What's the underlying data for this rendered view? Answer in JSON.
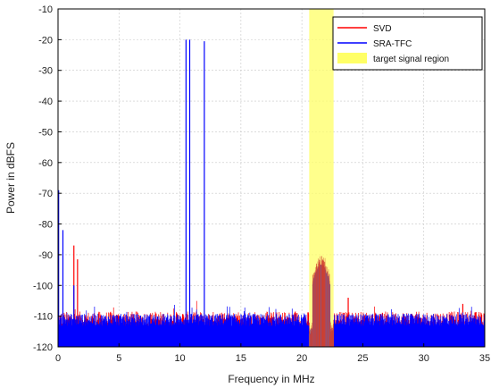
{
  "chart_data": {
    "type": "line",
    "title": "",
    "xlabel": "Frequency in MHz",
    "ylabel": "Power in dBFS",
    "xlim": [
      0,
      35
    ],
    "ylim": [
      -120,
      -10
    ],
    "xticks": [
      0,
      5,
      10,
      15,
      20,
      25,
      30,
      35
    ],
    "yticks": [
      -10,
      -20,
      -30,
      -40,
      -50,
      -60,
      -70,
      -80,
      -90,
      -100,
      -110,
      -120
    ],
    "grid": true,
    "legend_position": "top-right",
    "noise_floor_approx": -112,
    "series": [
      {
        "name": "SVD",
        "color": "#ff0000",
        "peaks": [
          {
            "x": 1.3,
            "y": -87
          },
          {
            "x": 1.6,
            "y": -91.5
          },
          {
            "x": 23.8,
            "y": -104
          },
          {
            "x": 33.2,
            "y": -106
          }
        ]
      },
      {
        "name": "SRA-TFC",
        "color": "#0000ff",
        "peaks": [
          {
            "x": 0.05,
            "y": -69
          },
          {
            "x": 0.4,
            "y": -82
          },
          {
            "x": 1.3,
            "y": -100
          },
          {
            "x": 10.5,
            "y": -20
          },
          {
            "x": 10.8,
            "y": -20
          },
          {
            "x": 12.0,
            "y": -20.5
          }
        ]
      }
    ],
    "target_band": {
      "label": "target signal region",
      "x_start": 20.6,
      "x_end": 22.6,
      "color": "#ffff66",
      "signal_peak_dbfs": -93
    }
  }
}
